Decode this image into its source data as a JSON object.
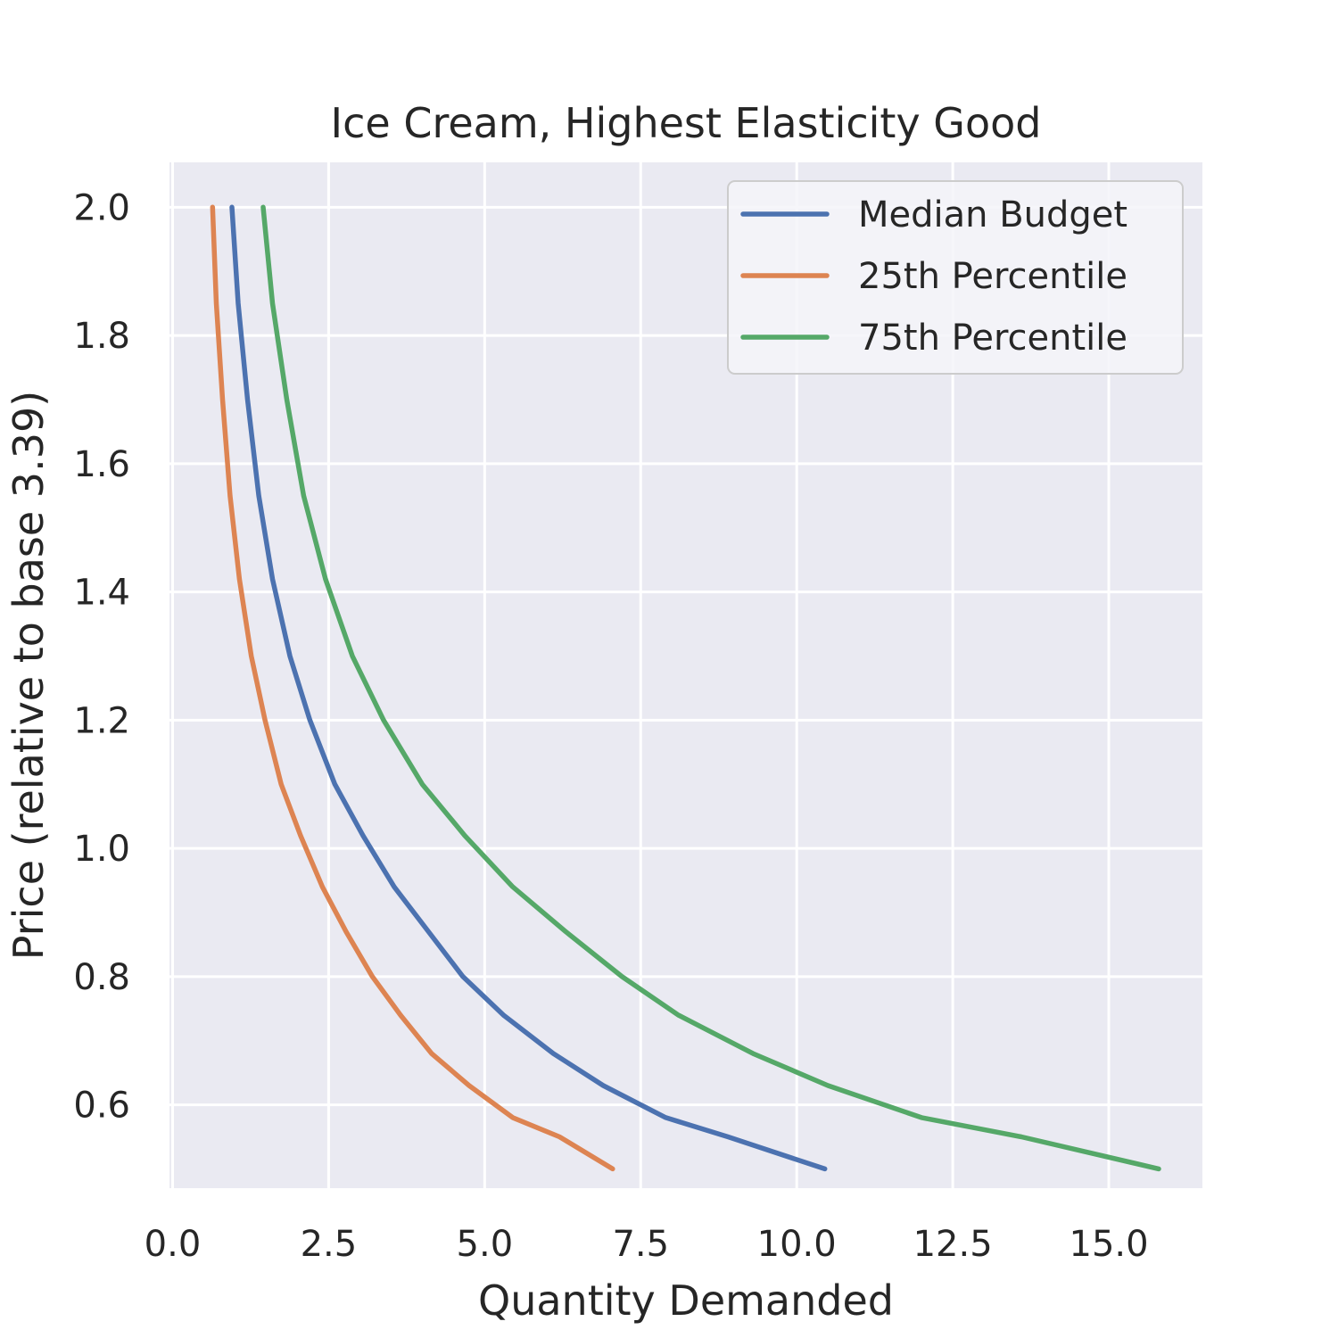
{
  "chart_data": {
    "type": "line",
    "title": "Ice Cream, Highest Elasticity Good",
    "xlabel": "Quantity Demanded",
    "ylabel": "Price (relative to base 3.39)",
    "xlim": [
      -0.05,
      16.5
    ],
    "ylim": [
      0.47,
      2.07
    ],
    "xticks": [
      0.0,
      2.5,
      5.0,
      7.5,
      10.0,
      12.5,
      15.0
    ],
    "xtick_labels": [
      "0.0",
      "2.5",
      "5.0",
      "7.5",
      "10.0",
      "12.5",
      "15.0"
    ],
    "yticks": [
      0.6,
      0.8,
      1.0,
      1.2,
      1.4,
      1.6,
      1.8,
      2.0
    ],
    "ytick_labels": [
      "0.6",
      "0.8",
      "1.0",
      "1.2",
      "1.4",
      "1.6",
      "1.8",
      "2.0"
    ],
    "grid": true,
    "legend_position": "top-right",
    "background_color": "#eaeaf2",
    "series": [
      {
        "name": "Median Budget",
        "color": "#4c72b0",
        "x": [
          0.95,
          1.05,
          1.2,
          1.38,
          1.6,
          1.88,
          2.2,
          2.6,
          3.05,
          3.55,
          4.1,
          4.65,
          5.3,
          6.1,
          6.9,
          7.9,
          8.9,
          10.45
        ],
        "y": [
          2.0,
          1.85,
          1.7,
          1.55,
          1.42,
          1.3,
          1.2,
          1.1,
          1.02,
          0.94,
          0.87,
          0.8,
          0.74,
          0.68,
          0.63,
          0.58,
          0.55,
          0.5
        ]
      },
      {
        "name": "25th Percentile",
        "color": "#dd8452",
        "x": [
          0.64,
          0.7,
          0.8,
          0.92,
          1.07,
          1.26,
          1.48,
          1.74,
          2.05,
          2.4,
          2.78,
          3.2,
          3.65,
          4.15,
          4.75,
          5.45,
          6.2,
          7.05
        ],
        "y": [
          2.0,
          1.85,
          1.7,
          1.55,
          1.42,
          1.3,
          1.2,
          1.1,
          1.02,
          0.94,
          0.87,
          0.8,
          0.74,
          0.68,
          0.63,
          0.58,
          0.55,
          0.5
        ]
      },
      {
        "name": "75th Percentile",
        "color": "#55a868",
        "x": [
          1.45,
          1.6,
          1.83,
          2.1,
          2.45,
          2.88,
          3.38,
          4.0,
          4.68,
          5.45,
          6.3,
          7.2,
          8.1,
          9.3,
          10.5,
          12.0,
          13.6,
          15.8
        ],
        "y": [
          2.0,
          1.85,
          1.7,
          1.55,
          1.42,
          1.3,
          1.2,
          1.1,
          1.02,
          0.94,
          0.87,
          0.8,
          0.74,
          0.68,
          0.63,
          0.58,
          0.55,
          0.5
        ]
      }
    ]
  }
}
